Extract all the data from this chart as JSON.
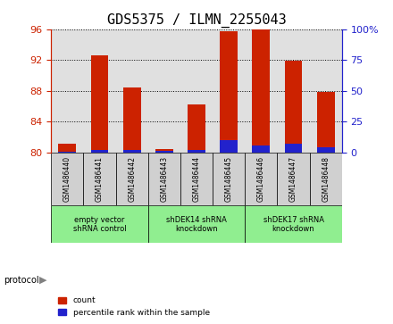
{
  "title": "GDS5375 / ILMN_2255043",
  "samples": [
    "GSM1486440",
    "GSM1486441",
    "GSM1486442",
    "GSM1486443",
    "GSM1486444",
    "GSM1486445",
    "GSM1486446",
    "GSM1486447",
    "GSM1486448"
  ],
  "count_values": [
    81.2,
    92.6,
    88.5,
    80.5,
    86.2,
    95.7,
    96.0,
    91.9,
    87.9
  ],
  "percentile_values": [
    1.0,
    2.5,
    2.5,
    1.5,
    2.0,
    10.0,
    6.0,
    7.0,
    4.0
  ],
  "ylim_left": [
    80,
    96
  ],
  "ylim_right": [
    0,
    100
  ],
  "yticks_left": [
    80,
    84,
    88,
    92,
    96
  ],
  "yticks_right": [
    0,
    25,
    50,
    75,
    100
  ],
  "bar_bottom": 80.0,
  "bar_color_red": "#cc2200",
  "bar_color_blue": "#2222cc",
  "bg_color": "#e0e0e0",
  "sample_bg_color": "#d0d0d0",
  "protocol_green": "#90ee90",
  "left_tick_color": "#cc2200",
  "right_tick_color": "#2222cc",
  "title_fontsize": 11,
  "tick_fontsize": 8,
  "protocols": [
    {
      "label": "empty vector\nshRNA control",
      "start": 0,
      "end": 3
    },
    {
      "label": "shDEK14 shRNA\nknockdown",
      "start": 3,
      "end": 6
    },
    {
      "label": "shDEK17 shRNA\nknockdown",
      "start": 6,
      "end": 9
    }
  ]
}
